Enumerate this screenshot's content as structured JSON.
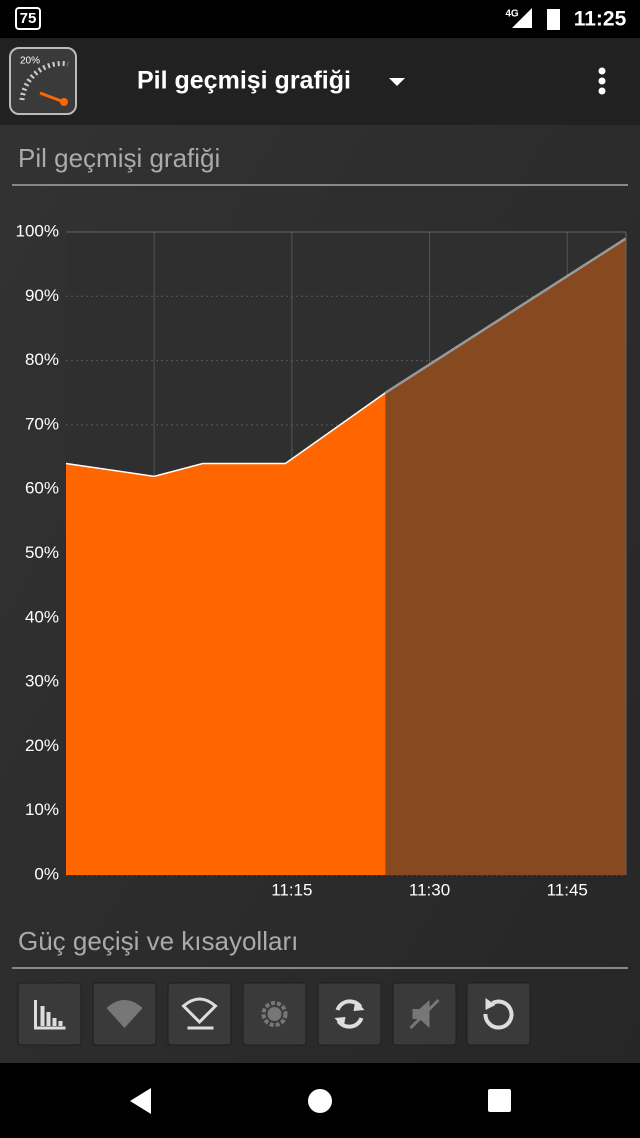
{
  "status_bar": {
    "badge": "75",
    "network": "4G",
    "time": "11:25"
  },
  "app_bar": {
    "icon_label": "20%",
    "title": "Pil geçmişi grafiği"
  },
  "sections": [
    "Pil geçmişi grafiği",
    "Güç geçişi ve kısayolları"
  ],
  "chart_data": {
    "type": "area",
    "series": [
      {
        "color": "#ff6600",
        "x": [
          650.4,
          660,
          665.3,
          674.3,
          685.2
        ],
        "values": [
          64,
          62,
          64,
          64,
          75
        ]
      },
      {
        "color": "#87491f",
        "x": [
          685.2,
          711.4
        ],
        "values": [
          75,
          99
        ]
      }
    ],
    "xlim": [
      650.4,
      711.4
    ],
    "xticks": [
      {
        "value": 660,
        "label": null
      },
      {
        "value": 675,
        "label": "11:15"
      },
      {
        "value": 690,
        "label": "11:30"
      },
      {
        "value": 705,
        "label": "11:45"
      }
    ],
    "ylim": [
      0,
      100
    ],
    "yticks": [
      {
        "value": 0,
        "label": "0%"
      },
      {
        "value": 10,
        "label": "10%"
      },
      {
        "value": 20,
        "label": "20%"
      },
      {
        "value": 30,
        "label": "30%"
      },
      {
        "value": 40,
        "label": "40%"
      },
      {
        "value": 50,
        "label": "50%"
      },
      {
        "value": 60,
        "label": "60%"
      },
      {
        "value": 70,
        "label": "70%"
      },
      {
        "value": 80,
        "label": "80%"
      },
      {
        "value": 90,
        "label": "90%"
      },
      {
        "value": 100,
        "label": "100%"
      }
    ],
    "grid": true
  }
}
